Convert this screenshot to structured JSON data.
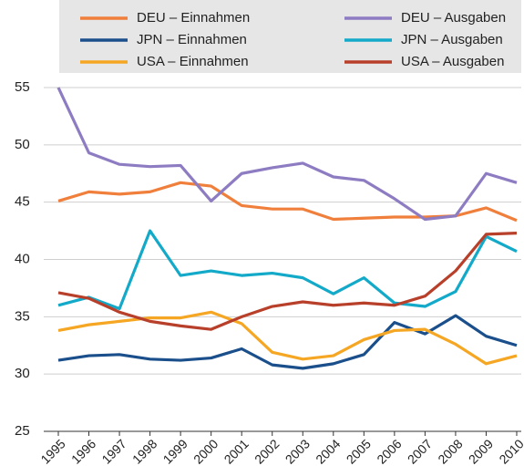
{
  "chart_data": {
    "type": "line",
    "x": [
      "1995",
      "1996",
      "1997",
      "1998",
      "1999",
      "2000",
      "2001",
      "2002",
      "2003",
      "2004",
      "2005",
      "2006",
      "2007",
      "2008",
      "2009",
      "2010"
    ],
    "series": [
      {
        "name": "DEU – Einnahmen",
        "color": "#f07f3c",
        "values": [
          45.1,
          45.9,
          45.7,
          45.9,
          46.7,
          46.4,
          44.7,
          44.4,
          44.4,
          43.5,
          43.6,
          43.7,
          43.7,
          43.8,
          44.5,
          43.4
        ]
      },
      {
        "name": "DEU – Ausgaben",
        "color": "#8e7cc3",
        "values": [
          55.0,
          49.3,
          48.3,
          48.1,
          48.2,
          45.1,
          47.5,
          48.0,
          48.4,
          47.2,
          46.9,
          45.3,
          43.5,
          43.8,
          47.5,
          46.7
        ]
      },
      {
        "name": "JPN – Einnahmen",
        "color": "#1a4f8b",
        "values": [
          31.2,
          31.6,
          31.7,
          31.3,
          31.2,
          31.4,
          32.2,
          30.8,
          30.5,
          30.9,
          31.7,
          34.5,
          33.5,
          35.1,
          33.3,
          32.5
        ]
      },
      {
        "name": "JPN – Ausgaben",
        "color": "#13a9c8",
        "values": [
          36.0,
          36.7,
          35.7,
          42.5,
          38.6,
          39.0,
          38.6,
          38.8,
          38.4,
          37.0,
          38.4,
          36.2,
          35.9,
          37.2,
          42.0,
          40.7
        ]
      },
      {
        "name": "USA – Einnahmen",
        "color": "#f5a623",
        "values": [
          33.8,
          34.3,
          34.6,
          34.9,
          34.9,
          35.4,
          34.4,
          31.9,
          31.3,
          31.6,
          33.0,
          33.8,
          33.9,
          32.6,
          30.9,
          31.6
        ]
      },
      {
        "name": "USA – Ausgaben",
        "color": "#b8402b",
        "values": [
          37.1,
          36.6,
          35.4,
          34.6,
          34.2,
          33.9,
          35.0,
          35.9,
          36.3,
          36.0,
          36.2,
          36.0,
          36.8,
          39.0,
          42.2,
          42.3
        ]
      }
    ],
    "ylim": [
      25,
      55
    ],
    "yticks": [
      25,
      30,
      35,
      40,
      45,
      50,
      55
    ],
    "grid": true,
    "legend": "top"
  }
}
